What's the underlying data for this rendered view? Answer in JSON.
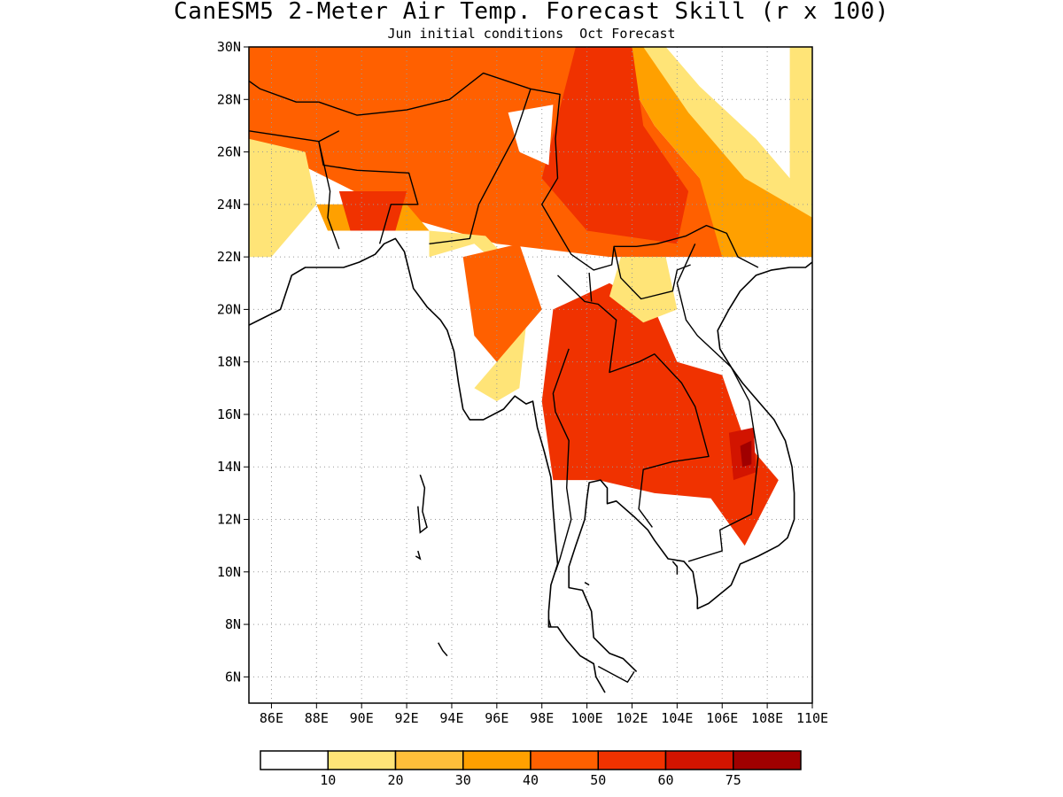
{
  "title": "CanESM5 2-Meter Air Temp. Forecast Skill (r x 100)",
  "subtitle": "Jun initial conditions  Oct Forecast",
  "map": {
    "lon_range": [
      85,
      110
    ],
    "lat_range": [
      5,
      30
    ],
    "lon_ticks": [
      86,
      88,
      90,
      92,
      94,
      96,
      98,
      100,
      102,
      104,
      106,
      108,
      110
    ],
    "lat_ticks": [
      6,
      8,
      10,
      12,
      14,
      16,
      18,
      20,
      22,
      24,
      26,
      28,
      30
    ],
    "lon_labels": [
      "86E",
      "88E",
      "90E",
      "92E",
      "94E",
      "96E",
      "98E",
      "100E",
      "102E",
      "104E",
      "106E",
      "108E",
      "110E"
    ],
    "lat_labels": [
      "6N",
      "8N",
      "10N",
      "12N",
      "14N",
      "16N",
      "18N",
      "20N",
      "22N",
      "24N",
      "26N",
      "28N",
      "30N"
    ],
    "grid": true
  },
  "colorbar": {
    "levels": [
      "10",
      "20",
      "30",
      "40",
      "50",
      "60",
      "75"
    ],
    "colors": [
      "#ffffff",
      "#ffe477",
      "#ffbf3a",
      "#ffa000",
      "#ff6000",
      "#f03200",
      "#d21400",
      "#a00000"
    ]
  },
  "regions": [
    {
      "name": "north-band-50",
      "level": 4,
      "pts": [
        [
          85,
          30
        ],
        [
          101,
          30
        ],
        [
          103,
          27
        ],
        [
          106,
          24
        ],
        [
          110,
          22
        ],
        [
          101,
          22
        ],
        [
          96,
          22.5
        ],
        [
          92,
          23.5
        ],
        [
          85,
          26.5
        ]
      ]
    },
    {
      "name": "west-edge-20",
      "level": 1,
      "pts": [
        [
          85,
          26.5
        ],
        [
          87.5,
          26
        ],
        [
          88,
          24
        ],
        [
          86,
          22
        ],
        [
          85,
          22
        ]
      ]
    },
    {
      "name": "west-edge-10",
      "level": 1,
      "pts": [
        [
          85,
          24
        ],
        [
          86,
          23
        ],
        [
          86,
          22
        ],
        [
          85,
          22
        ]
      ]
    },
    {
      "name": "bangladesh-30",
      "level": 3,
      "pts": [
        [
          88,
          24
        ],
        [
          92,
          24
        ],
        [
          93,
          23
        ],
        [
          88.5,
          23
        ]
      ]
    },
    {
      "name": "bangladesh-60",
      "level": 5,
      "pts": [
        [
          89,
          24.5
        ],
        [
          92,
          24.5
        ],
        [
          91.5,
          23
        ],
        [
          89.5,
          23
        ]
      ]
    },
    {
      "name": "myanmar-strip-20",
      "level": 1,
      "pts": [
        [
          93,
          22
        ],
        [
          95,
          22.5
        ],
        [
          97,
          21
        ],
        [
          96,
          18
        ],
        [
          95,
          17
        ],
        [
          96,
          16.5
        ],
        [
          97,
          17
        ],
        [
          97.5,
          21
        ],
        [
          95.5,
          22.8
        ],
        [
          93,
          23
        ]
      ]
    },
    {
      "name": "myanmar-central-50",
      "level": 4,
      "pts": [
        [
          94.5,
          22
        ],
        [
          97,
          22.5
        ],
        [
          98,
          20
        ],
        [
          96,
          18
        ],
        [
          95,
          19
        ]
      ]
    },
    {
      "name": "north-east-30",
      "level": 3,
      "pts": [
        [
          101,
          30
        ],
        [
          110,
          30
        ],
        [
          110,
          22
        ],
        [
          106,
          22
        ],
        [
          105,
          25
        ],
        [
          103,
          27
        ]
      ]
    },
    {
      "name": "north-east-10",
      "level": 1,
      "pts": [
        [
          102.5,
          30
        ],
        [
          110,
          30
        ],
        [
          110,
          23.5
        ],
        [
          107,
          25
        ],
        [
          104.5,
          27.5
        ]
      ]
    },
    {
      "name": "north-east-white",
      "level": 0,
      "pts": [
        [
          103.5,
          30
        ],
        [
          109,
          30
        ],
        [
          109,
          25
        ],
        [
          107.5,
          26.5
        ],
        [
          105,
          28.5
        ]
      ]
    },
    {
      "name": "yunnan-60",
      "level": 5,
      "pts": [
        [
          99.5,
          30
        ],
        [
          102,
          30
        ],
        [
          102.5,
          27
        ],
        [
          104.5,
          24.5
        ],
        [
          104,
          22.5
        ],
        [
          100,
          23
        ],
        [
          98,
          25
        ]
      ]
    },
    {
      "name": "thailand-laos-60",
      "level": 5,
      "pts": [
        [
          98.5,
          20
        ],
        [
          101,
          21
        ],
        [
          103,
          20
        ],
        [
          104,
          18
        ],
        [
          106,
          17.5
        ],
        [
          107,
          15
        ],
        [
          108.5,
          13.5
        ],
        [
          107,
          11
        ],
        [
          105.5,
          12.8
        ],
        [
          103,
          13
        ],
        [
          100.5,
          13.5
        ],
        [
          98.5,
          13.5
        ],
        [
          98,
          16.5
        ]
      ]
    },
    {
      "name": "laos-north-20",
      "level": 1,
      "pts": [
        [
          101.5,
          22
        ],
        [
          103.5,
          22
        ],
        [
          104,
          20
        ],
        [
          102.5,
          19.5
        ],
        [
          101,
          20.5
        ]
      ]
    },
    {
      "name": "cambodia-dark",
      "level": 6,
      "pts": [
        [
          106.3,
          15.3
        ],
        [
          107.4,
          15.5
        ],
        [
          107.5,
          13.8
        ],
        [
          106.5,
          13.5
        ]
      ]
    },
    {
      "name": "cambodia-darkest",
      "level": 7,
      "pts": [
        [
          106.8,
          14.8
        ],
        [
          107.3,
          15
        ],
        [
          107.3,
          14.1
        ],
        [
          106.9,
          14
        ]
      ]
    },
    {
      "name": "tibet-white",
      "level": 0,
      "pts": [
        [
          96.5,
          27.5
        ],
        [
          98.5,
          27.8
        ],
        [
          98.3,
          25.5
        ],
        [
          97,
          26
        ]
      ]
    }
  ],
  "borders": [
    [
      [
        93,
        22.5
      ],
      [
        94.8,
        22.7
      ],
      [
        95.2,
        24
      ],
      [
        96.8,
        26.6
      ],
      [
        97.5,
        28.4
      ],
      [
        98.8,
        28.2
      ],
      [
        98.6,
        26.5
      ],
      [
        98.7,
        25
      ],
      [
        98,
        24
      ],
      [
        99.3,
        22.1
      ],
      [
        100.3,
        21.5
      ],
      [
        101.1,
        21.7
      ],
      [
        101.2,
        22.4
      ],
      [
        102.2,
        22.4
      ],
      [
        103.1,
        22.5
      ],
      [
        104.4,
        22.8
      ],
      [
        105.3,
        23.2
      ],
      [
        106.2,
        22.9
      ],
      [
        106.7,
        22
      ],
      [
        107.6,
        21.6
      ]
    ],
    [
      [
        97.5,
        28.4
      ],
      [
        95.4,
        29
      ],
      [
        93.9,
        28
      ],
      [
        92,
        27.6
      ],
      [
        89.8,
        27.4
      ],
      [
        88.1,
        27.9
      ]
    ],
    [
      [
        88.1,
        27.9
      ],
      [
        87.1,
        27.9
      ],
      [
        85.5,
        28.4
      ],
      [
        85,
        28.7
      ]
    ],
    [
      [
        85,
        26.8
      ],
      [
        88.1,
        26.4
      ],
      [
        88.3,
        25.5
      ],
      [
        89.8,
        25.3
      ],
      [
        92.1,
        25.2
      ],
      [
        92.5,
        24
      ],
      [
        91.3,
        24
      ],
      [
        90.8,
        22.5
      ]
    ],
    [
      [
        89,
        26.8
      ],
      [
        88.1,
        26.4
      ],
      [
        88.6,
        24.5
      ],
      [
        88.5,
        23.5
      ],
      [
        89,
        22.3
      ]
    ],
    [
      [
        98.7,
        21.3
      ],
      [
        99.9,
        20.3
      ],
      [
        100.5,
        20.2
      ],
      [
        101.3,
        19.6
      ],
      [
        101,
        17.6
      ],
      [
        102.3,
        18
      ],
      [
        103,
        18.3
      ],
      [
        104.2,
        17.2
      ],
      [
        104.8,
        16.3
      ],
      [
        105.4,
        14.4
      ],
      [
        103.8,
        14.2
      ],
      [
        102.5,
        13.9
      ],
      [
        102.3,
        12.4
      ],
      [
        102.9,
        11.7
      ]
    ],
    [
      [
        100.1,
        21.4
      ],
      [
        100.2,
        20.3
      ]
    ],
    [
      [
        99.2,
        18.5
      ],
      [
        98.5,
        16.8
      ],
      [
        98.6,
        16.1
      ],
      [
        99.2,
        15
      ],
      [
        99.1,
        13.2
      ],
      [
        99.3,
        12
      ],
      [
        98.8,
        10.5
      ],
      [
        98.6,
        10
      ]
    ],
    [
      [
        104.8,
        22.5
      ],
      [
        104,
        21
      ],
      [
        104.4,
        19.6
      ],
      [
        104.9,
        19
      ],
      [
        106.4,
        17.8
      ],
      [
        107.2,
        16.5
      ],
      [
        107.4,
        15.4
      ],
      [
        107.6,
        14.4
      ],
      [
        107.3,
        12.2
      ],
      [
        105.9,
        11.6
      ],
      [
        106,
        10.8
      ],
      [
        104.5,
        10.4
      ]
    ],
    [
      [
        101.2,
        22.4
      ],
      [
        101.5,
        21.2
      ],
      [
        102.4,
        20.4
      ],
      [
        103.8,
        20.7
      ],
      [
        104,
        21.5
      ],
      [
        104.6,
        21.7
      ]
    ],
    [
      [
        100.5,
        6.4
      ],
      [
        101.8,
        5.8
      ],
      [
        102.1,
        6.2
      ]
    ]
  ],
  "coastline": [
    [
      [
        85,
        19.4
      ],
      [
        86.4,
        20
      ],
      [
        86.9,
        21.3
      ],
      [
        87.5,
        21.6
      ],
      [
        88.3,
        21.6
      ],
      [
        89.2,
        21.6
      ],
      [
        89.9,
        21.8
      ],
      [
        90.6,
        22.1
      ],
      [
        91,
        22.5
      ],
      [
        91.5,
        22.7
      ],
      [
        91.9,
        22.2
      ],
      [
        92.3,
        20.8
      ],
      [
        92.9,
        20.1
      ],
      [
        93.5,
        19.6
      ],
      [
        93.8,
        19.2
      ],
      [
        94.1,
        18.4
      ],
      [
        94.3,
        17.2
      ],
      [
        94.5,
        16.2
      ],
      [
        94.8,
        15.8
      ],
      [
        95.4,
        15.8
      ],
      [
        96.3,
        16.2
      ],
      [
        96.8,
        16.7
      ],
      [
        97.3,
        16.4
      ],
      [
        97.6,
        16.5
      ],
      [
        97.8,
        15.5
      ],
      [
        98.1,
        14.6
      ],
      [
        98.4,
        13.6
      ],
      [
        98.5,
        12.4
      ],
      [
        98.6,
        11.3
      ],
      [
        98.7,
        10.3
      ],
      [
        98.4,
        9.5
      ],
      [
        98.3,
        8.5
      ],
      [
        98.3,
        7.9
      ],
      [
        98.7,
        7.9
      ],
      [
        99.1,
        7.4
      ],
      [
        99.7,
        6.8
      ],
      [
        100.3,
        6.5
      ],
      [
        100.4,
        6
      ],
      [
        100.8,
        5.4
      ]
    ],
    [
      [
        102.2,
        6.2
      ],
      [
        101.6,
        6.7
      ],
      [
        101,
        6.9
      ],
      [
        100.3,
        7.5
      ],
      [
        100.2,
        8.5
      ],
      [
        99.8,
        9.3
      ],
      [
        99.2,
        9.4
      ],
      [
        99.2,
        10.2
      ],
      [
        99.5,
        11
      ],
      [
        99.9,
        12
      ],
      [
        100,
        12.8
      ],
      [
        100.1,
        13.4
      ],
      [
        100.6,
        13.5
      ],
      [
        100.9,
        13.2
      ],
      [
        100.9,
        12.6
      ],
      [
        101.3,
        12.7
      ],
      [
        102.1,
        12.1
      ],
      [
        102.7,
        11.6
      ],
      [
        103,
        11.2
      ],
      [
        103.6,
        10.5
      ],
      [
        104.3,
        10.4
      ],
      [
        104.7,
        10
      ],
      [
        104.9,
        9
      ],
      [
        104.9,
        8.6
      ],
      [
        105.4,
        8.8
      ],
      [
        106.4,
        9.5
      ],
      [
        106.8,
        10.3
      ],
      [
        107.6,
        10.6
      ],
      [
        108.5,
        11
      ],
      [
        108.9,
        11.3
      ],
      [
        109.2,
        12
      ],
      [
        109.2,
        13
      ],
      [
        109.1,
        14
      ],
      [
        108.8,
        15
      ],
      [
        108.3,
        15.8
      ],
      [
        107.6,
        16.5
      ],
      [
        106.9,
        17.2
      ],
      [
        106.4,
        17.8
      ],
      [
        105.9,
        18.5
      ],
      [
        105.8,
        19.2
      ],
      [
        106.3,
        20
      ],
      [
        106.8,
        20.7
      ],
      [
        107.5,
        21.3
      ],
      [
        108.2,
        21.5
      ],
      [
        109,
        21.6
      ],
      [
        109.7,
        21.6
      ],
      [
        110,
        21.8
      ]
    ]
  ],
  "islands": [
    [
      [
        92.6,
        13.7
      ],
      [
        92.8,
        13.2
      ],
      [
        92.7,
        12.3
      ],
      [
        92.9,
        11.7
      ],
      [
        92.6,
        11.5
      ],
      [
        92.5,
        12.5
      ]
    ],
    [
      [
        92.5,
        10.8
      ],
      [
        92.6,
        10.5
      ],
      [
        92.4,
        10.6
      ]
    ],
    [
      [
        93.4,
        7.3
      ],
      [
        93.6,
        7
      ],
      [
        93.8,
        6.8
      ]
    ],
    [
      [
        103.8,
        10.4
      ],
      [
        104.0,
        10.2
      ],
      [
        104.0,
        9.9
      ]
    ],
    [
      [
        98.3,
        8.2
      ],
      [
        98.4,
        7.9
      ]
    ],
    [
      [
        99.9,
        9.6
      ],
      [
        100.1,
        9.5
      ]
    ]
  ]
}
